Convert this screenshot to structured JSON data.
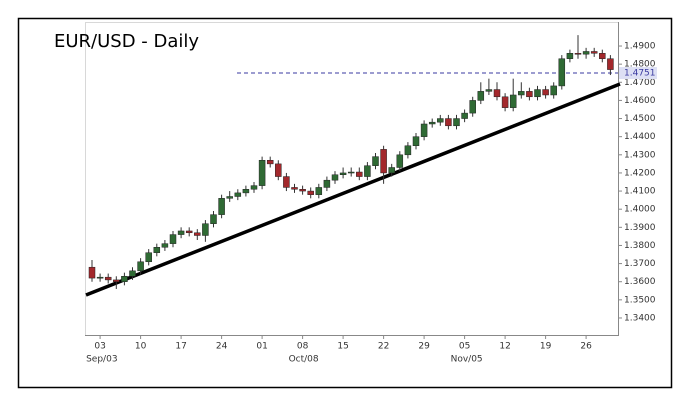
{
  "chart_data": {
    "type": "candlestick",
    "title": "EUR/USD - Daily",
    "categories": [
      null,
      "03",
      null,
      null,
      null,
      null,
      "10",
      null,
      null,
      null,
      null,
      "17",
      null,
      null,
      null,
      null,
      "24",
      null,
      null,
      null,
      null,
      "01",
      null,
      null,
      null,
      null,
      "08",
      null,
      null,
      null,
      null,
      "15",
      null,
      null,
      null,
      null,
      "22",
      null,
      null,
      null,
      null,
      "29",
      null,
      null,
      null,
      null,
      "05",
      null,
      null,
      null,
      null,
      "12",
      null,
      null,
      null,
      null,
      "19",
      null,
      null,
      null,
      null,
      "26",
      null,
      null,
      null
    ],
    "month_labels": [
      null,
      "Sep/03",
      null,
      null,
      null,
      null,
      null,
      null,
      null,
      null,
      null,
      null,
      null,
      null,
      null,
      null,
      null,
      null,
      null,
      null,
      null,
      null,
      null,
      null,
      null,
      null,
      "Oct/08",
      null,
      null,
      null,
      null,
      null,
      null,
      null,
      null,
      null,
      null,
      null,
      null,
      null,
      null,
      null,
      null,
      null,
      null,
      null,
      "Nov/05",
      null,
      null,
      null,
      null,
      null,
      null,
      null,
      null,
      null,
      null,
      null,
      null,
      null,
      null,
      null,
      null,
      null,
      null,
      null
    ],
    "open": [
      1.368,
      1.362,
      1.3625,
      1.361,
      1.36,
      1.363,
      1.366,
      1.371,
      1.376,
      1.379,
      1.381,
      1.386,
      1.388,
      1.387,
      1.3855,
      1.392,
      1.397,
      1.406,
      1.407,
      1.409,
      1.411,
      1.413,
      1.427,
      1.425,
      1.418,
      1.412,
      1.411,
      1.41,
      1.408,
      1.412,
      1.416,
      1.419,
      1.42,
      1.4205,
      1.418,
      1.424,
      1.433,
      1.42,
      1.423,
      1.43,
      1.435,
      1.44,
      1.447,
      1.448,
      1.45,
      1.446,
      1.45,
      1.453,
      1.46,
      1.465,
      1.466,
      1.462,
      1.456,
      1.463,
      1.465,
      1.462,
      1.466,
      1.463,
      1.468,
      1.483,
      1.486,
      1.4855,
      1.487,
      1.486,
      1.483
    ],
    "high": [
      1.372,
      1.3645,
      1.3645,
      1.363,
      1.365,
      1.368,
      1.373,
      1.378,
      1.381,
      1.383,
      1.388,
      1.39,
      1.39,
      1.389,
      1.394,
      1.399,
      1.408,
      1.41,
      1.411,
      1.413,
      1.415,
      1.429,
      1.429,
      1.427,
      1.42,
      1.414,
      1.413,
      1.412,
      1.414,
      1.418,
      1.421,
      1.423,
      1.423,
      1.423,
      1.426,
      1.431,
      1.435,
      1.425,
      1.432,
      1.437,
      1.442,
      1.449,
      1.45,
      1.452,
      1.452,
      1.452,
      1.455,
      1.462,
      1.47,
      1.472,
      1.47,
      1.464,
      1.472,
      1.47,
      1.467,
      1.468,
      1.468,
      1.47,
      1.485,
      1.488,
      1.496,
      1.489,
      1.489,
      1.488,
      1.485
    ],
    "low": [
      1.36,
      1.36,
      1.359,
      1.356,
      1.358,
      1.361,
      1.364,
      1.369,
      1.374,
      1.377,
      1.379,
      1.384,
      1.385,
      1.383,
      1.382,
      1.39,
      1.395,
      1.404,
      1.405,
      1.407,
      1.409,
      1.411,
      1.423,
      1.416,
      1.41,
      1.409,
      1.408,
      1.406,
      1.406,
      1.41,
      1.414,
      1.417,
      1.418,
      1.416,
      1.416,
      1.422,
      1.414,
      1.418,
      1.421,
      1.428,
      1.433,
      1.438,
      1.445,
      1.446,
      1.444,
      1.444,
      1.448,
      1.451,
      1.458,
      1.463,
      1.46,
      1.454,
      1.454,
      1.461,
      1.46,
      1.46,
      1.461,
      1.461,
      1.466,
      1.481,
      1.483,
      1.483,
      1.484,
      1.481,
      1.474
    ],
    "close": [
      1.362,
      1.3625,
      1.361,
      1.36,
      1.363,
      1.366,
      1.371,
      1.376,
      1.379,
      1.381,
      1.386,
      1.388,
      1.387,
      1.3855,
      1.392,
      1.397,
      1.406,
      1.407,
      1.409,
      1.411,
      1.413,
      1.427,
      1.425,
      1.418,
      1.412,
      1.411,
      1.41,
      1.408,
      1.412,
      1.416,
      1.419,
      1.42,
      1.4205,
      1.418,
      1.424,
      1.429,
      1.42,
      1.423,
      1.43,
      1.435,
      1.44,
      1.447,
      1.448,
      1.45,
      1.446,
      1.45,
      1.453,
      1.46,
      1.465,
      1.466,
      1.462,
      1.456,
      1.463,
      1.465,
      1.462,
      1.466,
      1.463,
      1.468,
      1.483,
      1.486,
      1.4855,
      1.487,
      1.486,
      1.483,
      1.477
    ],
    "up_color": "#2f6a34",
    "down_color": "#a3282c",
    "ylim": [
      1.33,
      1.5
    ],
    "yticks": [
      {
        "value": 1.34,
        "label": "1.3400"
      },
      {
        "value": 1.35,
        "label": "1.3500"
      },
      {
        "value": 1.36,
        "label": "1.3600"
      },
      {
        "value": 1.37,
        "label": "1.3700"
      },
      {
        "value": 1.38,
        "label": "1.3800"
      },
      {
        "value": 1.39,
        "label": "1.3900"
      },
      {
        "value": 1.4,
        "label": "1.4000"
      },
      {
        "value": 1.41,
        "label": "1.4100"
      },
      {
        "value": 1.42,
        "label": "1.4200"
      },
      {
        "value": 1.43,
        "label": "1.4300"
      },
      {
        "value": 1.44,
        "label": "1.4400"
      },
      {
        "value": 1.45,
        "label": "1.4500"
      },
      {
        "value": 1.46,
        "label": "1.4600"
      },
      {
        "value": 1.47,
        "label": "1.4700"
      },
      {
        "value": 1.48,
        "label": "1.4800"
      },
      {
        "value": 1.49,
        "label": "1.4900"
      }
    ],
    "reference_line": {
      "value": 1.4751,
      "label": "1.4751",
      "color": "#3a3aa0"
    }
  }
}
